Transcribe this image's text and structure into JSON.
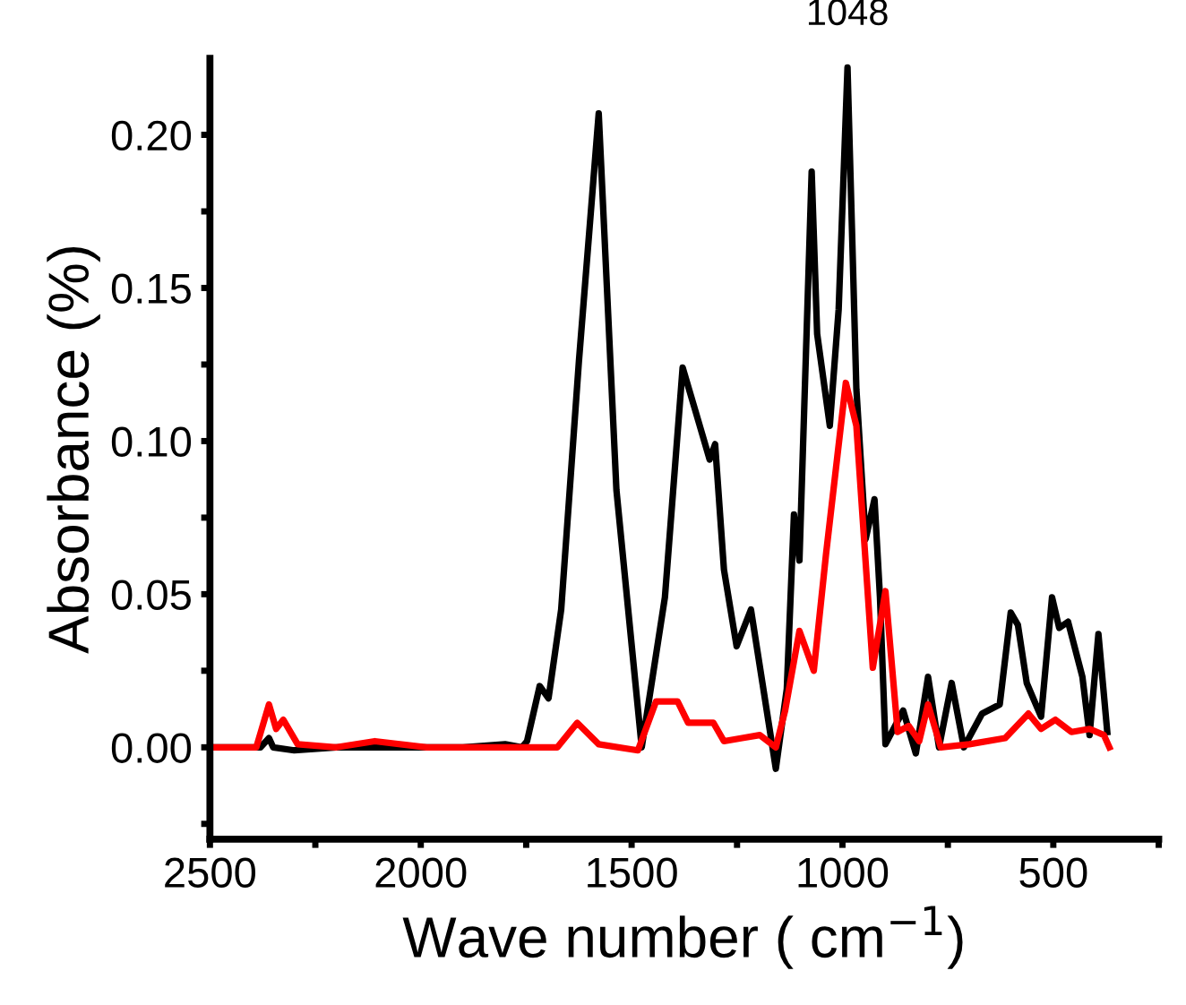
{
  "chart_data": {
    "type": "line",
    "xlabel": "Wave number ( cm$^{−1}$)",
    "ylabel": "Absorbance (%)",
    "xlim": [
      2500,
      250
    ],
    "xticks": [
      2500,
      {
        "value": 2250,
        "label": null
      },
      2000,
      {
        "value": 1750,
        "label": null
      },
      1500,
      {
        "value": 1250,
        "label": null
      },
      1000,
      {
        "value": 750,
        "label": null
      },
      500,
      {
        "value": 250,
        "label": null
      }
    ],
    "ylim": [
      -0.03,
      0.225
    ],
    "yticks": [
      {
        "value": -0.025,
        "label": null
      },
      {
        "value": 0,
        "label": "0.00"
      },
      {
        "value": 0.025,
        "label": null
      },
      {
        "value": 0.05,
        "label": "0.05"
      },
      {
        "value": 0.075,
        "label": null
      },
      {
        "value": 0.1,
        "label": "0.10"
      },
      {
        "value": 0.125,
        "label": null
      },
      {
        "value": 0.15,
        "label": "0.15"
      },
      {
        "value": 0.175,
        "label": null
      },
      {
        "value": 0.2,
        "label": "0.20"
      }
    ],
    "grid": false,
    "legend": false,
    "line_style": "solid",
    "marker": "none",
    "annotations": [
      {
        "text": "1048",
        "x": 988,
        "y": 0.222
      }
    ],
    "series": [
      {
        "color": "#000000",
        "x": [
          2500,
          2380,
          2360,
          2350,
          2300,
          2200,
          1900,
          1800,
          1760,
          1748,
          1718,
          1697,
          1667,
          1625,
          1578,
          1536,
          1476,
          1421,
          1379,
          1349,
          1315,
          1302,
          1281,
          1251,
          1217,
          1158,
          1132,
          1115,
          1102,
          1073,
          1060,
          1030,
          1009,
          988,
          967,
          945,
          924,
          911,
          898,
          856,
          826,
          797,
          771,
          741,
          712,
          669,
          627,
          601,
          584,
          563,
          529,
          503,
          486,
          465,
          431,
          414,
          393,
          372
        ],
        "values": [
          0,
          0,
          0.003,
          0,
          -0.001,
          0,
          0,
          0.001,
          0,
          0.002,
          0.02,
          0.016,
          0.045,
          0.126,
          0.207,
          0.084,
          0,
          0.049,
          0.124,
          0.11,
          0.094,
          0.099,
          0.058,
          0.033,
          0.045,
          -0.007,
          0.019,
          0.076,
          0.061,
          0.188,
          0.135,
          0.105,
          0.143,
          0.222,
          0.117,
          0.068,
          0.081,
          0.049,
          0.001,
          0.012,
          -0.002,
          0.023,
          0,
          0.021,
          0,
          0.011,
          0.014,
          0.044,
          0.04,
          0.021,
          0.01,
          0.049,
          0.039,
          0.041,
          0.023,
          0.004,
          0.037,
          0.005
        ]
      },
      {
        "color": "#ff0000",
        "x": [
          2500,
          2390,
          2360,
          2343,
          2326,
          2292,
          2200,
          2109,
          1986,
          1676,
          1629,
          1578,
          1485,
          1442,
          1391,
          1366,
          1306,
          1281,
          1238,
          1196,
          1158,
          1136,
          1102,
          1068,
          1039,
          992,
          967,
          928,
          898,
          869,
          843,
          818,
          797,
          767,
          699,
          614,
          559,
          529,
          495,
          457,
          414,
          380,
          367
        ],
        "values": [
          0,
          0,
          0.014,
          0.006,
          0.009,
          0.001,
          0,
          0.002,
          0,
          0,
          0.008,
          0.001,
          -0.001,
          0.015,
          0.015,
          0.008,
          0.008,
          0.002,
          0.003,
          0.004,
          0,
          0.012,
          0.038,
          0.025,
          0.063,
          0.119,
          0.105,
          0.026,
          0.051,
          0.005,
          0.007,
          0.002,
          0.014,
          0,
          0.001,
          0.003,
          0.011,
          0.006,
          0.009,
          0.005,
          0.006,
          0.004,
          0
        ]
      }
    ]
  }
}
